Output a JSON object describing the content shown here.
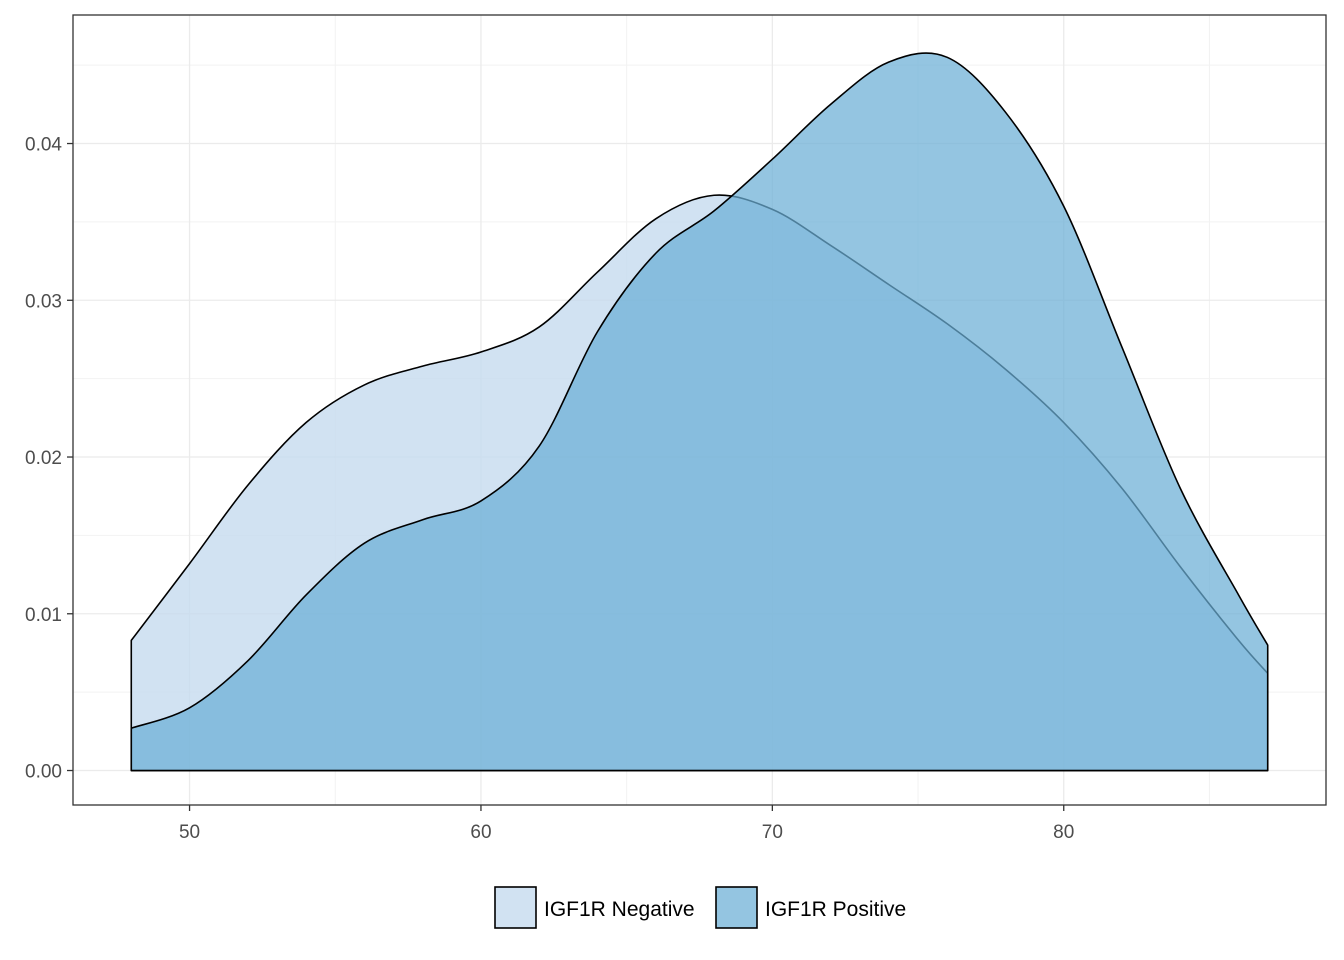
{
  "chart_data": {
    "type": "area",
    "title": "",
    "xlabel": "",
    "ylabel": "",
    "xlim": [
      46,
      89
    ],
    "ylim": [
      -0.0022,
      0.0482
    ],
    "x_ticks": [
      50,
      60,
      70,
      80
    ],
    "x_tick_labels": [
      "50",
      "60",
      "70",
      "80"
    ],
    "y_ticks": [
      0.0,
      0.01,
      0.02,
      0.03,
      0.04
    ],
    "y_tick_labels": [
      "0.00",
      "0.01",
      "0.02",
      "0.03",
      "0.04"
    ],
    "grid": true,
    "legend_position": "bottom",
    "series": [
      {
        "name": "IGF1R Negative",
        "color": "#c6dbef",
        "fill_opacity": 0.8,
        "x": [
          48,
          50,
          52,
          54,
          56,
          58,
          60,
          62,
          64,
          66,
          68,
          70,
          72,
          74,
          76,
          78,
          80,
          82,
          84,
          86,
          87
        ],
        "y": [
          0.0083,
          0.0132,
          0.0182,
          0.0222,
          0.0246,
          0.0258,
          0.0267,
          0.0283,
          0.0318,
          0.0352,
          0.0367,
          0.0358,
          0.0335,
          0.031,
          0.0285,
          0.0256,
          0.0222,
          0.018,
          0.013,
          0.0083,
          0.0062
        ]
      },
      {
        "name": "IGF1R Positive",
        "color": "#6baed6",
        "fill_opacity": 0.72,
        "x": [
          48,
          50,
          52,
          54,
          56,
          58,
          60,
          62,
          64,
          66,
          68,
          70,
          72,
          74,
          76,
          78,
          80,
          82,
          84,
          86,
          87
        ],
        "y": [
          0.0027,
          0.004,
          0.007,
          0.0112,
          0.0145,
          0.016,
          0.0172,
          0.0207,
          0.028,
          0.033,
          0.0357,
          0.039,
          0.0425,
          0.0452,
          0.0455,
          0.042,
          0.036,
          0.027,
          0.018,
          0.0112,
          0.008
        ]
      }
    ]
  }
}
